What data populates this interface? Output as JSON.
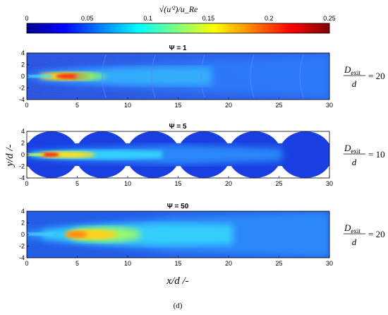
{
  "colorbar": {
    "label": "√(u'²)/u_Re",
    "ticks": [
      "0",
      "0.05",
      "0.1",
      "0.15",
      "0.2",
      "0.25"
    ],
    "range": [
      0,
      0.25
    ]
  },
  "axes": {
    "xlabel": "x/d /-",
    "ylabel": "y/d /-",
    "xticks": [
      "0",
      "5",
      "10",
      "15",
      "20",
      "25",
      "30"
    ],
    "yticks": [
      "4",
      "2",
      "0",
      "-2",
      "-4"
    ],
    "xlim": [
      0,
      30
    ],
    "ylim": [
      -4,
      4
    ]
  },
  "panels": [
    {
      "title": "Ψ = 1",
      "annotation": {
        "numerator": "D",
        "subscript": "exit",
        "denominator": "d",
        "value": "= 20"
      }
    },
    {
      "title": "Ψ = 5",
      "annotation": {
        "numerator": "D",
        "subscript": "exit",
        "denominator": "d",
        "value": "= 10"
      }
    },
    {
      "title": "Ψ = 50",
      "annotation": {
        "numerator": "D",
        "subscript": "exit",
        "denominator": "d",
        "value": "= 20"
      }
    }
  ],
  "caption": "(d)",
  "chart_data": [
    {
      "type": "heatmap",
      "title": "Ψ = 1",
      "xlabel": "x/d /-",
      "ylabel": "y/d /-",
      "xlim": [
        0,
        30
      ],
      "ylim": [
        -4,
        4
      ],
      "colorbar_range": [
        0,
        0.25
      ],
      "grid": false
    },
    {
      "type": "heatmap",
      "title": "Ψ = 5",
      "xlabel": "x/d /-",
      "ylabel": "y/d /-",
      "xlim": [
        0,
        30
      ],
      "ylim": [
        -4,
        4
      ],
      "colorbar_range": [
        0,
        0.25
      ],
      "grid": false
    },
    {
      "type": "heatmap",
      "title": "Ψ = 50",
      "xlabel": "x/d /-",
      "ylabel": "y/d /-",
      "xlim": [
        0,
        30
      ],
      "ylim": [
        -4,
        4
      ],
      "colorbar_range": [
        0,
        0.25
      ],
      "grid": false
    }
  ]
}
